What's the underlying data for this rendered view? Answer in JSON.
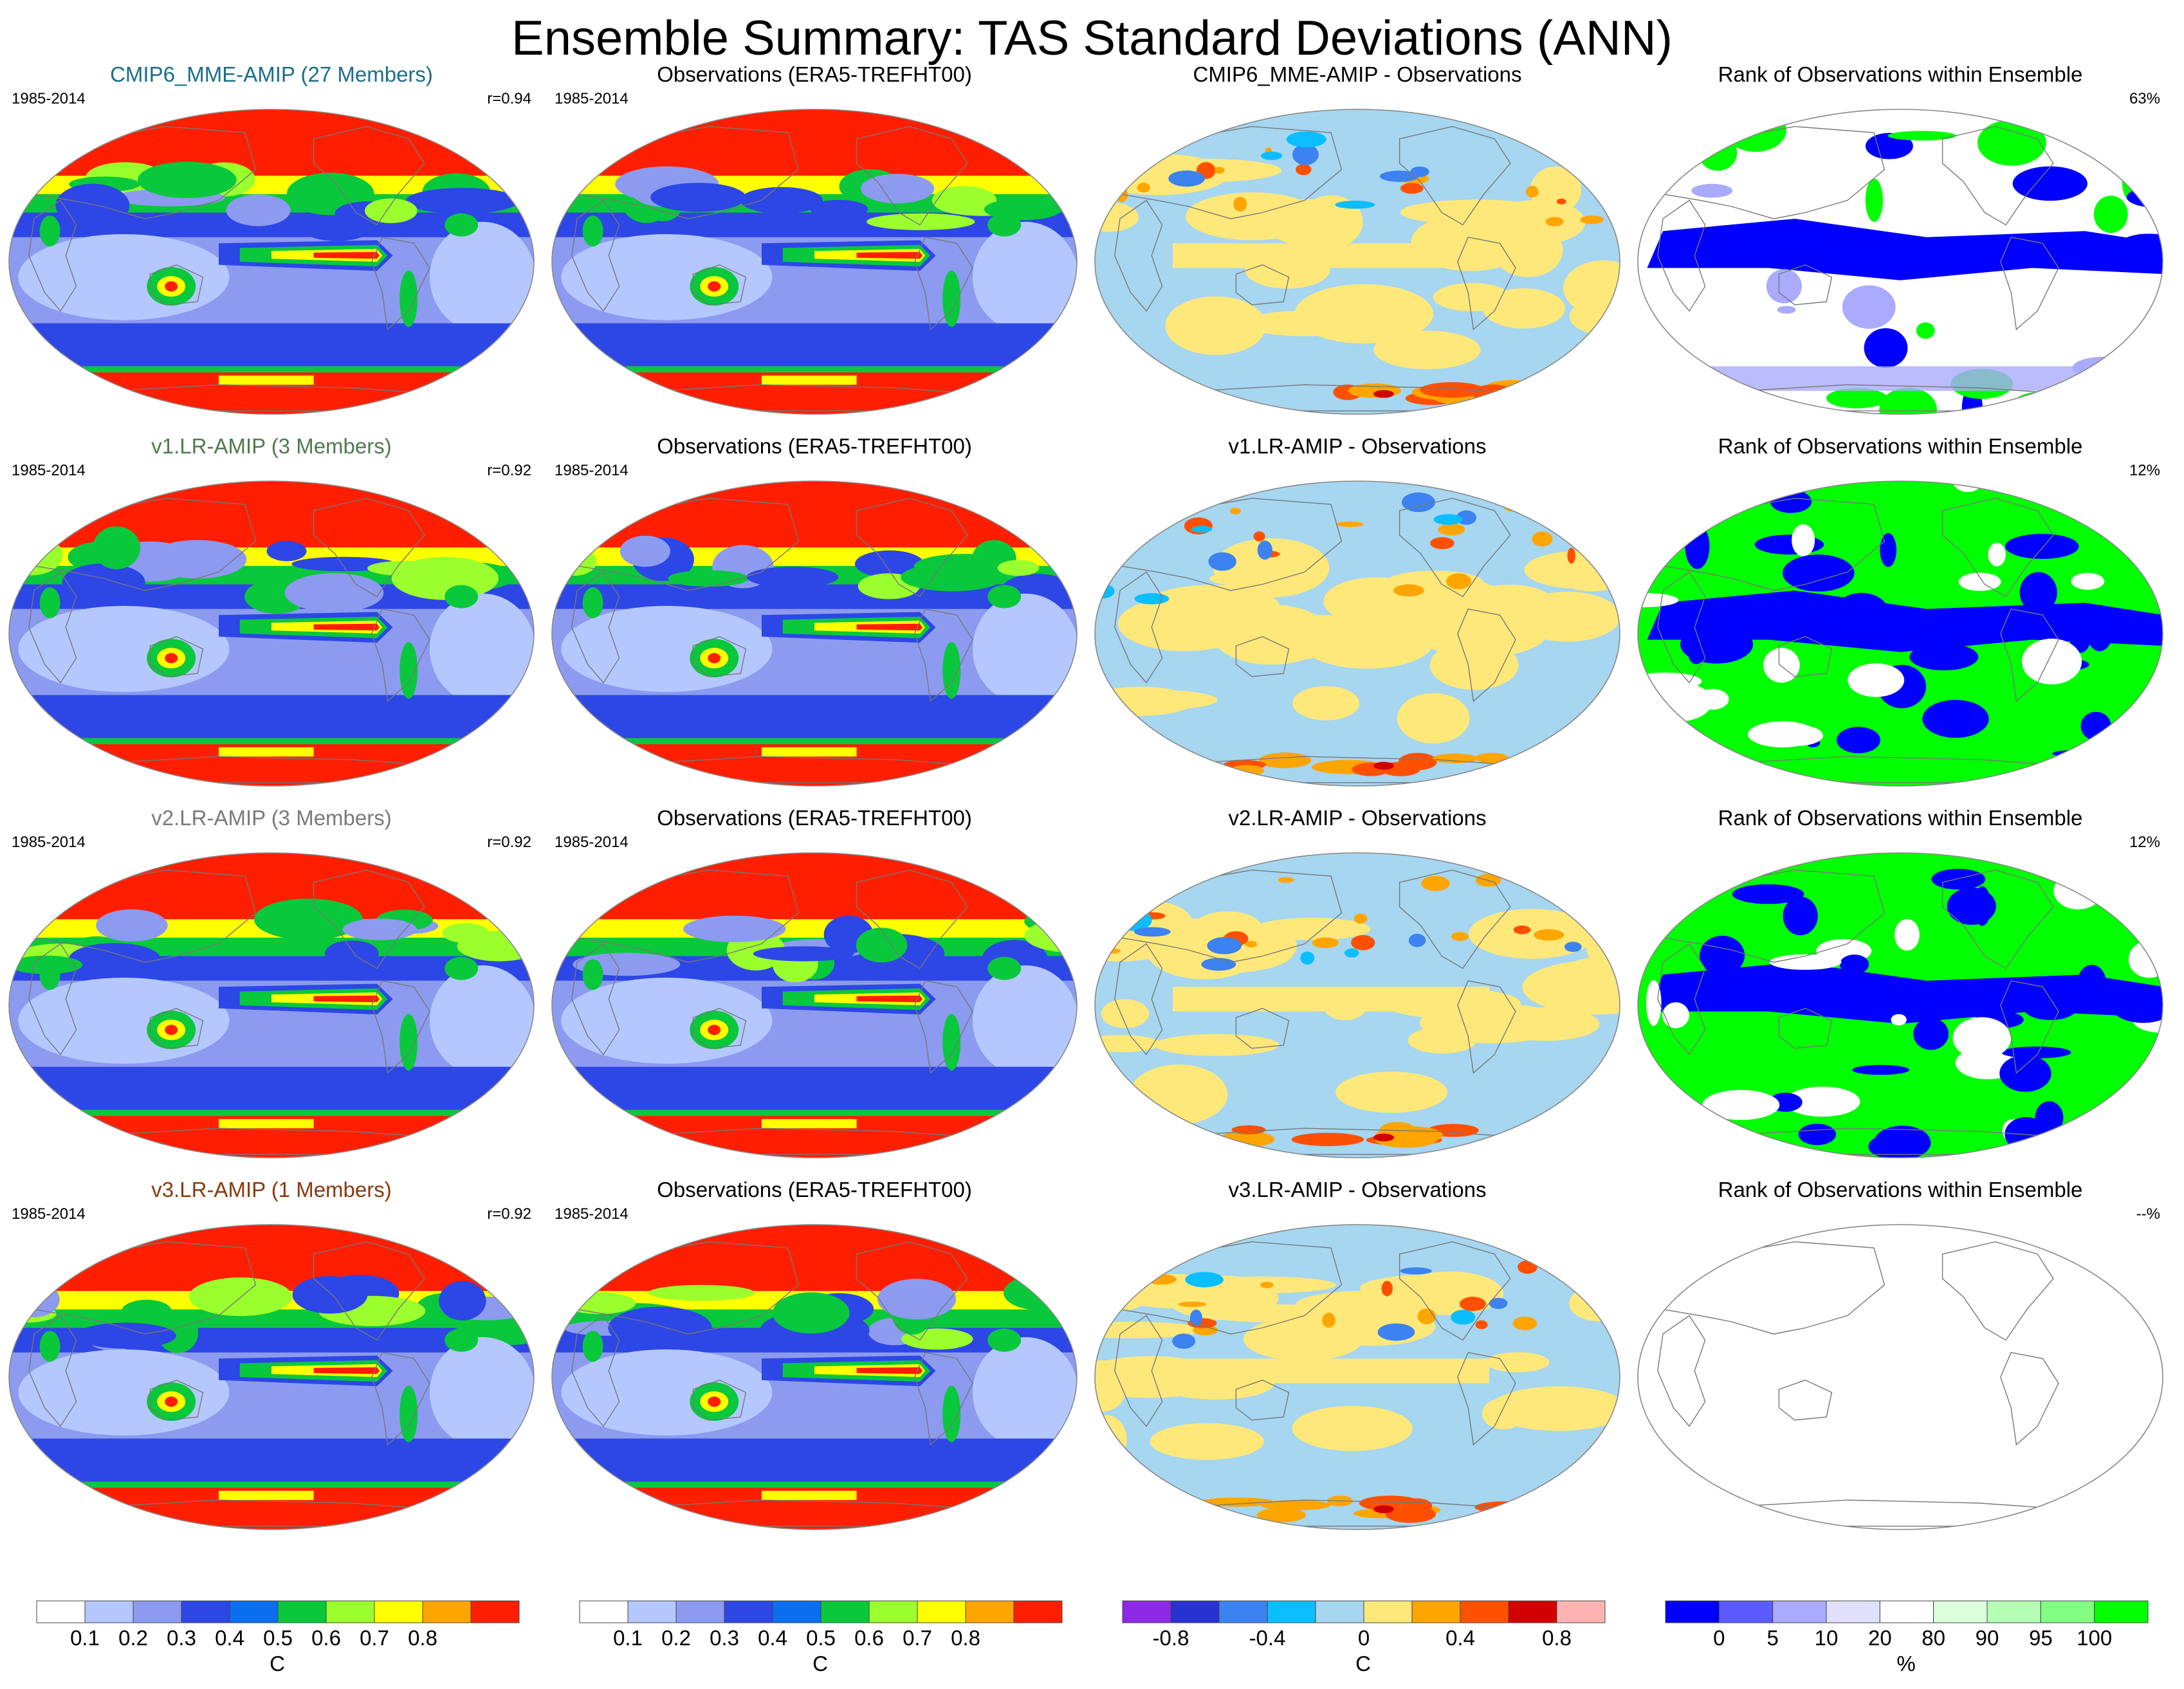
{
  "title": "Ensemble Summary: TAS Standard Deviations (ANN)",
  "colors": {
    "sd_scale": [
      "#ffffff",
      "#b4c8ff",
      "#8c9bf0",
      "#2d46e6",
      "#0a6ef0",
      "#0ac83c",
      "#9bff2d",
      "#ffff00",
      "#ffa500",
      "#ff1e00"
    ],
    "diff_scale": [
      "#8c28e6",
      "#2832d2",
      "#3c82f0",
      "#0abeff",
      "#a6d6f0",
      "#ffe87a",
      "#ffa500",
      "#ff5000",
      "#d20000",
      "#ffb4b4"
    ],
    "rank_scale": [
      "#0000ff",
      "#5a5aff",
      "#aaaaff",
      "#e1e1ff",
      "#ffffff",
      "#dcffdc",
      "#b4ffb4",
      "#82ff82",
      "#00ff00"
    ]
  },
  "rows": [
    {
      "model": {
        "title": "CMIP6_MME-AMIP (27 Members)",
        "title_color": "#1a6e8a",
        "period": "1985-2014",
        "corr": "r=0.94"
      },
      "obs": {
        "title": "Observations (ERA5-TREFHT00)",
        "period": "1985-2014"
      },
      "diff": {
        "title": "CMIP6_MME-AMIP - Observations"
      },
      "rank": {
        "title": "Rank of Observations within Ensemble",
        "percent": "63%",
        "style": "sparse"
      }
    },
    {
      "model": {
        "title": "v1.LR-AMIP (3 Members)",
        "title_color": "#4f7a4f",
        "period": "1985-2014",
        "corr": "r=0.92"
      },
      "obs": {
        "title": "Observations (ERA5-TREFHT00)",
        "period": "1985-2014"
      },
      "diff": {
        "title": "v1.LR-AMIP - Observations"
      },
      "rank": {
        "title": "Rank of Observations within Ensemble",
        "percent": "12%",
        "style": "dense"
      }
    },
    {
      "model": {
        "title": "v2.LR-AMIP (3 Members)",
        "title_color": "#7a7a7a",
        "period": "1985-2014",
        "corr": "r=0.92"
      },
      "obs": {
        "title": "Observations (ERA5-TREFHT00)",
        "period": "1985-2014"
      },
      "diff": {
        "title": "v2.LR-AMIP - Observations"
      },
      "rank": {
        "title": "Rank of Observations within Ensemble",
        "percent": "12%",
        "style": "dense"
      }
    },
    {
      "model": {
        "title": "v3.LR-AMIP (1 Members)",
        "title_color": "#8a3a0a",
        "period": "1985-2014",
        "corr": "r=0.92"
      },
      "obs": {
        "title": "Observations (ERA5-TREFHT00)",
        "period": "1985-2014"
      },
      "diff": {
        "title": "v3.LR-AMIP - Observations"
      },
      "rank": {
        "title": "Rank of Observations within Ensemble",
        "percent": "--%",
        "style": "empty"
      }
    }
  ],
  "colorbars": [
    {
      "palette": "sd_scale",
      "labels": [
        "0.1",
        "0.2",
        "0.3",
        "0.4",
        "0.5",
        "0.6",
        "0.7",
        "0.8"
      ],
      "unit": "C"
    },
    {
      "palette": "sd_scale",
      "labels": [
        "0.1",
        "0.2",
        "0.3",
        "0.4",
        "0.5",
        "0.6",
        "0.7",
        "0.8"
      ],
      "unit": "C"
    },
    {
      "palette": "diff_scale",
      "labels": [
        "-0.8",
        "-0.4",
        "0",
        "0.4",
        "0.8"
      ],
      "unit": "C"
    },
    {
      "palette": "rank_scale",
      "labels": [
        "0",
        "5",
        "10",
        "20",
        "80",
        "90",
        "95",
        "100"
      ],
      "unit": "%"
    }
  ]
}
